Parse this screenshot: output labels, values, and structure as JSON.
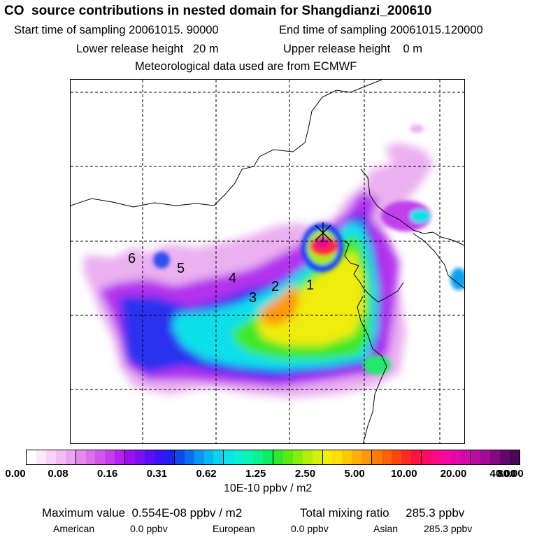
{
  "header": {
    "title": "CO  source contributions in nested domain for Shangdianzi_200610",
    "start_label": "Start time of sampling 20061015. 90000",
    "end_label": "End time of sampling 20061015.120000",
    "lower_label": "Lower release height   20 m",
    "upper_label": "Upper release height    0 m",
    "met_label": "Meteorological data used are from ECMWF"
  },
  "map": {
    "region_labels": [
      "1",
      "2",
      "3",
      "4",
      "5",
      "6"
    ],
    "station_marker": "cross"
  },
  "colorbar": {
    "ticks": [
      "0.00",
      "0.08",
      "0.16",
      "0.31",
      "0.62",
      "1.25",
      "2.50",
      "5.00",
      "10.00",
      "20.00",
      "40.00",
      "80.00"
    ],
    "units": "10E-10 ppbv / m2",
    "colors": [
      [
        "#ffffff",
        "#fbe8fb",
        "#f7d2f7",
        "#f3bcf3",
        "#eca4ef"
      ],
      [
        "#e48aec",
        "#dc70ea",
        "#d256ea",
        "#c43eec",
        "#b422ee"
      ],
      [
        "#9a10f2",
        "#7a10f4",
        "#5a10f6",
        "#3a14f6",
        "#2020f0"
      ],
      [
        "#1048f0",
        "#0a70f2",
        "#0898f2",
        "#08b8f0",
        "#0ad2ee"
      ],
      [
        "#0ae6e8",
        "#0af0d6",
        "#0af4b6",
        "#0af490",
        "#0aee60"
      ],
      [
        "#30e830",
        "#5aea10",
        "#86ee0a",
        "#b0f00a",
        "#d6f00a"
      ],
      [
        "#f2ee08",
        "#fcde08",
        "#fec808",
        "#feb008",
        "#fe9808"
      ],
      [
        "#fe7c08",
        "#fe6208",
        "#fe4610",
        "#fe2a26",
        "#fe1240"
      ],
      [
        "#fe0a66",
        "#fa0a86",
        "#f40a9c",
        "#e40aa8",
        "#d20aa8"
      ],
      [
        "#be0aa4",
        "#a20a98",
        "#820a84",
        "#620a6c",
        "#460a52"
      ]
    ]
  },
  "summary": {
    "max_label": "Maximum value  0.554E-08 ppbv / m2",
    "total_label": "Total mixing ratio     285.3 ppbv",
    "american_label": "American",
    "american_value": "0.0 ppbv",
    "european_label": "European",
    "european_value": "0.0 ppbv",
    "asian_label": "Asian",
    "asian_value": "285.3 ppbv"
  }
}
